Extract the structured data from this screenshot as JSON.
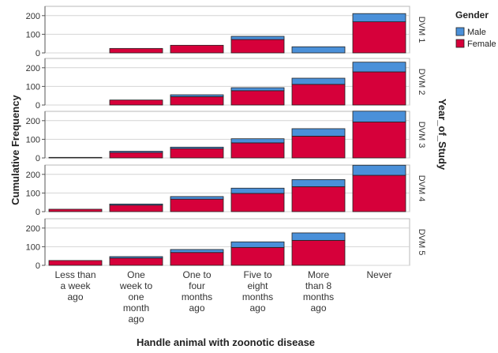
{
  "chart_data": {
    "type": "bar",
    "stacked": true,
    "faceted": true,
    "xlabel": "Handle animal with zoonotic disease",
    "ylabel": "Cumulative Frequency",
    "facet_label": "Year_of_Study",
    "ylim": [
      0,
      250
    ],
    "yticks": [
      0,
      100,
      200
    ],
    "grid": true,
    "legend_position": "top-right",
    "legend_title": "Gender",
    "series": [
      {
        "name": "Male",
        "color": "#4a90d9"
      },
      {
        "name": "Female",
        "color": "#d6003a"
      }
    ],
    "categories": [
      [
        "Less than",
        "a week",
        "ago"
      ],
      [
        "One",
        "week to",
        "one",
        "month",
        "ago"
      ],
      [
        "One to",
        "four",
        "months",
        "ago"
      ],
      [
        "Five to",
        "eight",
        "months",
        "ago"
      ],
      [
        "More",
        "than 8",
        "months",
        "ago"
      ],
      [
        "Never"
      ]
    ],
    "panels": [
      {
        "name": "DVM 1",
        "female": [
          0,
          24,
          41,
          72,
          0,
          167
        ],
        "male": [
          0,
          0,
          0,
          17,
          33,
          44
        ]
      },
      {
        "name": "DVM 2",
        "female": [
          0,
          27,
          45,
          77,
          111,
          178
        ],
        "male": [
          0,
          0,
          10,
          16,
          33,
          52
        ]
      },
      {
        "name": "DVM 3",
        "female": [
          3,
          29,
          50,
          81,
          117,
          193
        ],
        "male": [
          0,
          7,
          8,
          22,
          40,
          58
        ]
      },
      {
        "name": "DVM 4",
        "female": [
          13,
          35,
          67,
          98,
          134,
          195
        ],
        "male": [
          0,
          6,
          14,
          28,
          38,
          54
        ]
      },
      {
        "name": "DVM 5",
        "female": [
          26,
          39,
          69,
          96,
          134,
          0
        ],
        "male": [
          0,
          8,
          16,
          30,
          40,
          0
        ]
      }
    ]
  }
}
